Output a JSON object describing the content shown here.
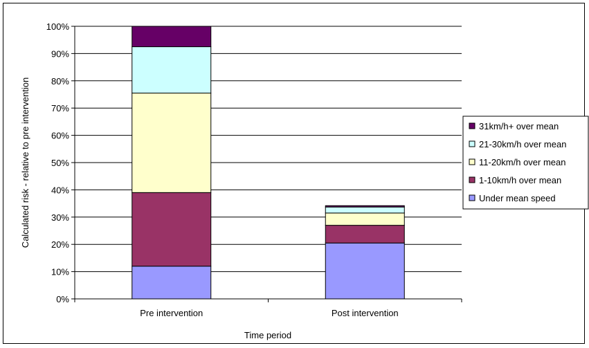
{
  "chart_data": {
    "type": "bar",
    "stacked": true,
    "categories": [
      "Pre intervention",
      "Post intervention"
    ],
    "series": [
      {
        "name": "Under mean speed",
        "values": [
          12,
          20.5
        ],
        "color": "#9999ff"
      },
      {
        "name": "1-10km/h over mean",
        "values": [
          27,
          6.5
        ],
        "color": "#993366"
      },
      {
        "name": "11-20km/h over mean",
        "values": [
          36.5,
          4.5
        ],
        "color": "#ffffcc"
      },
      {
        "name": "21-30km/h over mean",
        "values": [
          17,
          2.2
        ],
        "color": "#ccffff"
      },
      {
        "name": "31km/h+ over mean",
        "values": [
          7.5,
          0.5
        ],
        "color": "#660066"
      }
    ],
    "xlabel": "Time period",
    "ylabel": "Calculated risk - relative to pre intervention",
    "ylim": [
      0,
      100
    ],
    "yticks": [
      "0%",
      "10%",
      "20%",
      "30%",
      "40%",
      "50%",
      "60%",
      "70%",
      "80%",
      "90%",
      "100%"
    ],
    "grid": true,
    "legend_position": "right"
  }
}
